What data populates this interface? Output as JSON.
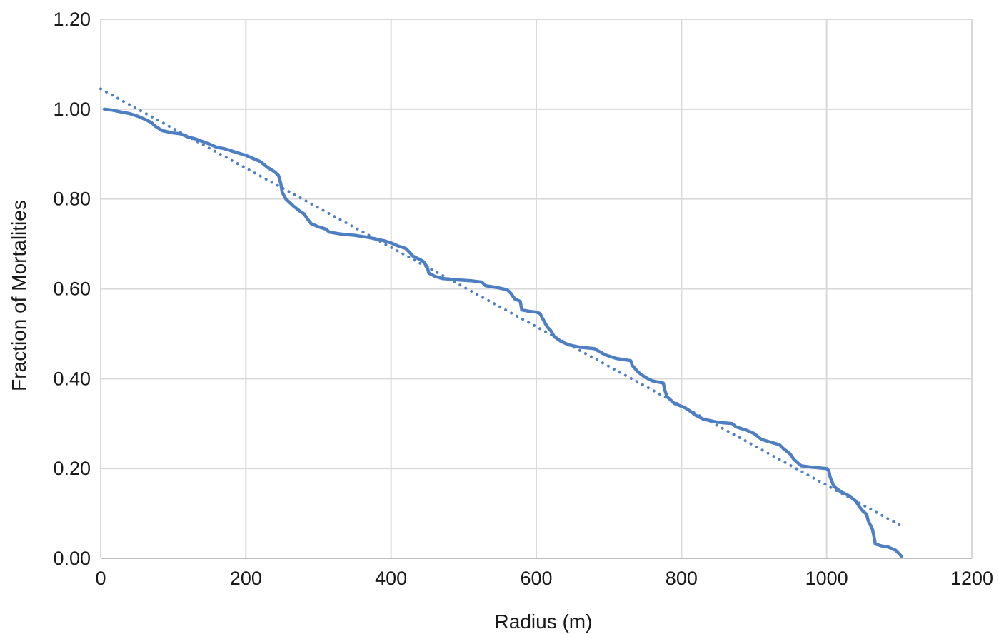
{
  "chart_data": {
    "type": "line",
    "title": "",
    "xlabel": "Radius (m)",
    "ylabel": "Fraction of Mortalities",
    "xlim": [
      0,
      1200
    ],
    "ylim": [
      0,
      1.2
    ],
    "xticks": [
      0,
      200,
      400,
      600,
      800,
      1000,
      1200
    ],
    "xtick_labels": [
      "0",
      "200",
      "400",
      "600",
      "800",
      "1000",
      "1200"
    ],
    "yticks": [
      0,
      0.2,
      0.4,
      0.6,
      0.8,
      1.0,
      1.2
    ],
    "ytick_labels": [
      "0.00",
      "0.20",
      "0.40",
      "0.60",
      "0.80",
      "1.00",
      "1.20"
    ],
    "grid": true,
    "legend": "none",
    "series": [
      {
        "style": "solid",
        "color": "#4f7fc3",
        "points": [
          [
            5,
            1.0
          ],
          [
            15,
            0.998
          ],
          [
            30,
            0.993
          ],
          [
            40,
            0.99
          ],
          [
            50,
            0.985
          ],
          [
            60,
            0.978
          ],
          [
            70,
            0.97
          ],
          [
            75,
            0.962
          ],
          [
            85,
            0.952
          ],
          [
            100,
            0.947
          ],
          [
            110,
            0.945
          ],
          [
            120,
            0.938
          ],
          [
            130,
            0.934
          ],
          [
            140,
            0.928
          ],
          [
            150,
            0.922
          ],
          [
            160,
            0.915
          ],
          [
            170,
            0.912
          ],
          [
            180,
            0.907
          ],
          [
            190,
            0.902
          ],
          [
            200,
            0.897
          ],
          [
            210,
            0.89
          ],
          [
            220,
            0.883
          ],
          [
            230,
            0.87
          ],
          [
            240,
            0.86
          ],
          [
            245,
            0.852
          ],
          [
            248,
            0.835
          ],
          [
            250,
            0.815
          ],
          [
            255,
            0.8
          ],
          [
            265,
            0.785
          ],
          [
            275,
            0.772
          ],
          [
            280,
            0.767
          ],
          [
            285,
            0.755
          ],
          [
            290,
            0.745
          ],
          [
            300,
            0.738
          ],
          [
            310,
            0.733
          ],
          [
            315,
            0.726
          ],
          [
            330,
            0.722
          ],
          [
            350,
            0.719
          ],
          [
            370,
            0.714
          ],
          [
            390,
            0.707
          ],
          [
            400,
            0.702
          ],
          [
            410,
            0.695
          ],
          [
            420,
            0.69
          ],
          [
            425,
            0.682
          ],
          [
            430,
            0.673
          ],
          [
            440,
            0.665
          ],
          [
            445,
            0.66
          ],
          [
            450,
            0.648
          ],
          [
            452,
            0.635
          ],
          [
            460,
            0.628
          ],
          [
            470,
            0.623
          ],
          [
            490,
            0.62
          ],
          [
            510,
            0.618
          ],
          [
            525,
            0.615
          ],
          [
            530,
            0.607
          ],
          [
            545,
            0.603
          ],
          [
            560,
            0.598
          ],
          [
            565,
            0.59
          ],
          [
            570,
            0.578
          ],
          [
            578,
            0.572
          ],
          [
            580,
            0.553
          ],
          [
            590,
            0.55
          ],
          [
            600,
            0.548
          ],
          [
            605,
            0.545
          ],
          [
            610,
            0.53
          ],
          [
            615,
            0.515
          ],
          [
            620,
            0.507
          ],
          [
            625,
            0.493
          ],
          [
            635,
            0.482
          ],
          [
            645,
            0.475
          ],
          [
            660,
            0.47
          ],
          [
            680,
            0.467
          ],
          [
            685,
            0.462
          ],
          [
            695,
            0.453
          ],
          [
            710,
            0.445
          ],
          [
            730,
            0.44
          ],
          [
            732,
            0.43
          ],
          [
            740,
            0.415
          ],
          [
            750,
            0.403
          ],
          [
            760,
            0.395
          ],
          [
            775,
            0.39
          ],
          [
            777,
            0.375
          ],
          [
            780,
            0.36
          ],
          [
            790,
            0.345
          ],
          [
            805,
            0.335
          ],
          [
            810,
            0.33
          ],
          [
            820,
            0.318
          ],
          [
            830,
            0.31
          ],
          [
            850,
            0.303
          ],
          [
            870,
            0.3
          ],
          [
            875,
            0.293
          ],
          [
            890,
            0.285
          ],
          [
            900,
            0.278
          ],
          [
            910,
            0.265
          ],
          [
            920,
            0.26
          ],
          [
            935,
            0.253
          ],
          [
            940,
            0.245
          ],
          [
            950,
            0.232
          ],
          [
            955,
            0.22
          ],
          [
            965,
            0.206
          ],
          [
            980,
            0.203
          ],
          [
            1000,
            0.2
          ],
          [
            1003,
            0.195
          ],
          [
            1005,
            0.18
          ],
          [
            1010,
            0.16
          ],
          [
            1020,
            0.148
          ],
          [
            1030,
            0.14
          ],
          [
            1040,
            0.128
          ],
          [
            1045,
            0.115
          ],
          [
            1050,
            0.105
          ],
          [
            1055,
            0.098
          ],
          [
            1057,
            0.085
          ],
          [
            1063,
            0.065
          ],
          [
            1065,
            0.05
          ],
          [
            1067,
            0.032
          ],
          [
            1075,
            0.028
          ],
          [
            1085,
            0.025
          ],
          [
            1095,
            0.018
          ],
          [
            1100,
            0.01
          ],
          [
            1103,
            0.005
          ]
        ]
      },
      {
        "style": "dotted",
        "kind": "linear trendline",
        "color": "#4f7fc3",
        "points": [
          [
            0,
            1.045
          ],
          [
            1103,
            0.072
          ]
        ]
      }
    ]
  }
}
